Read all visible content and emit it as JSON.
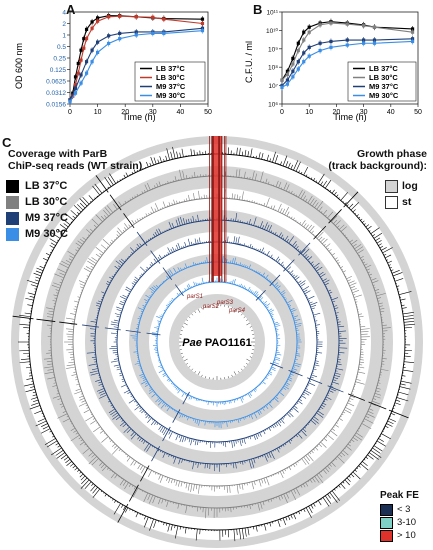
{
  "panelA": {
    "letter": "A",
    "ylabel": "OD 600 nm",
    "xlabel": "Time (h)",
    "yticks": [
      "4",
      "2",
      "1",
      "0.5",
      "0.25",
      "0.125",
      "0.0625",
      "0.0312",
      "0.0156"
    ],
    "xticks": [
      "0",
      "10",
      "20",
      "30",
      "40",
      "50"
    ],
    "legend": [
      "LB 37°C",
      "LB 30°C",
      "M9 37°C",
      "M9 30°C"
    ]
  },
  "panelB": {
    "letter": "B",
    "ylabel": "C.F.U. / ml",
    "xlabel": "Time (h)",
    "yticks": [
      "10¹¹",
      "10¹⁰",
      "10⁹",
      "10⁸",
      "10⁷",
      "10⁶"
    ],
    "xticks": [
      "0",
      "10",
      "20",
      "30",
      "40",
      "50"
    ],
    "legend": [
      "LB 37°C",
      "LB 30°C",
      "M9 37°C",
      "M9 30°C"
    ]
  },
  "panelC": {
    "letter": "C",
    "title_line1": "Coverage with ParB",
    "title_line2": "ChiP-seq reads (WT strain)",
    "conditions": [
      "LB 37°C",
      "LB 30°C",
      "M9 37°C",
      "M9 30°C"
    ],
    "growth_title_line1": "Growth phase",
    "growth_title_line2": "(track background):",
    "growth_phases": [
      "log",
      "st"
    ],
    "center_italic": "Pae",
    "center_text": "PAO1161",
    "pars_labels": [
      "parS1",
      "parS2",
      "parS3",
      "parS4"
    ],
    "peak_title": "Peak FE",
    "peak_levels": [
      "< 3",
      "3-10",
      "> 10"
    ]
  },
  "colors": {
    "lb37": "#000000",
    "lb30": "#808080",
    "m937": "#1f3f77",
    "m930": "#3a8ee6",
    "log_bg": "#d4d4d4",
    "st_bg": "#ffffff",
    "peak_low": "#1b2f55",
    "peak_mid": "#7fd1c8",
    "peak_high": "#e0312b"
  },
  "chart_data": [
    {
      "type": "line",
      "title": "",
      "xlabel": "Time (h)",
      "ylabel": "OD 600 nm",
      "yscale": "log2",
      "xlim": [
        0,
        50
      ],
      "ylim": [
        0.0156,
        4
      ],
      "series": [
        {
          "name": "LB 37°C",
          "x": [
            0,
            1,
            2,
            3,
            4,
            5,
            6,
            8,
            10,
            14,
            18,
            24,
            30,
            34,
            48
          ],
          "y": [
            0.02,
            0.03,
            0.08,
            0.18,
            0.4,
            0.8,
            1.4,
            2.2,
            2.8,
            3.2,
            3.2,
            3.0,
            2.8,
            2.7,
            2.6
          ]
        },
        {
          "name": "LB 30°C",
          "x": [
            0,
            1,
            2,
            3,
            4,
            5,
            6,
            8,
            10,
            14,
            18,
            24,
            30,
            34,
            48
          ],
          "y": [
            0.02,
            0.025,
            0.05,
            0.1,
            0.22,
            0.45,
            0.8,
            1.5,
            2.3,
            3.0,
            3.1,
            3.0,
            2.9,
            2.6,
            2.0
          ]
        },
        {
          "name": "M9 37°C",
          "x": [
            0,
            2,
            4,
            6,
            8,
            10,
            14,
            18,
            24,
            30,
            34,
            48
          ],
          "y": [
            0.02,
            0.04,
            0.09,
            0.2,
            0.4,
            0.65,
            0.95,
            1.1,
            1.2,
            1.2,
            1.2,
            1.5
          ]
        },
        {
          "name": "M9 30°C",
          "x": [
            0,
            2,
            4,
            6,
            8,
            10,
            14,
            18,
            24,
            30,
            34,
            48
          ],
          "y": [
            0.018,
            0.03,
            0.055,
            0.1,
            0.2,
            0.35,
            0.6,
            0.8,
            1.0,
            1.1,
            1.1,
            1.3
          ]
        }
      ]
    },
    {
      "type": "line",
      "title": "",
      "xlabel": "Time (h)",
      "ylabel": "C.F.U. / ml",
      "yscale": "log10",
      "xlim": [
        0,
        50
      ],
      "ylim": [
        1000000,
        100000000000
      ],
      "series": [
        {
          "name": "LB 37°C",
          "x": [
            0,
            2,
            4,
            6,
            8,
            10,
            14,
            18,
            24,
            30,
            34,
            48
          ],
          "y": [
            20000000.0,
            60000000.0,
            300000000.0,
            2000000000.0,
            8000000000.0,
            15000000000.0,
            25000000000.0,
            30000000000.0,
            25000000000.0,
            20000000000.0,
            15000000000.0,
            12000000000.0
          ]
        },
        {
          "name": "LB 30°C",
          "x": [
            0,
            2,
            4,
            6,
            8,
            10,
            14,
            18,
            24,
            30,
            34,
            48
          ],
          "y": [
            20000000.0,
            40000000.0,
            150000000.0,
            800000000.0,
            3000000000.0,
            8000000000.0,
            20000000000.0,
            25000000000.0,
            22000000000.0,
            18000000000.0,
            15000000000.0,
            8000000000.0
          ]
        },
        {
          "name": "M9 37°C",
          "x": [
            0,
            2,
            4,
            6,
            8,
            10,
            14,
            18,
            24,
            30,
            34,
            48
          ],
          "y": [
            10000000.0,
            20000000.0,
            60000000.0,
            200000000.0,
            600000000.0,
            1200000000.0,
            2000000000.0,
            2500000000.0,
            3000000000.0,
            3000000000.0,
            3000000000.0,
            3500000000.0
          ]
        },
        {
          "name": "M9 30°C",
          "x": [
            0,
            2,
            4,
            6,
            8,
            10,
            14,
            18,
            24,
            30,
            34,
            48
          ],
          "y": [
            8000000.0,
            12000000.0,
            30000000.0,
            80000000.0,
            200000000.0,
            400000000.0,
            800000000.0,
            1200000000.0,
            1600000000.0,
            2000000000.0,
            2000000000.0,
            2500000000.0
          ]
        }
      ]
    }
  ]
}
